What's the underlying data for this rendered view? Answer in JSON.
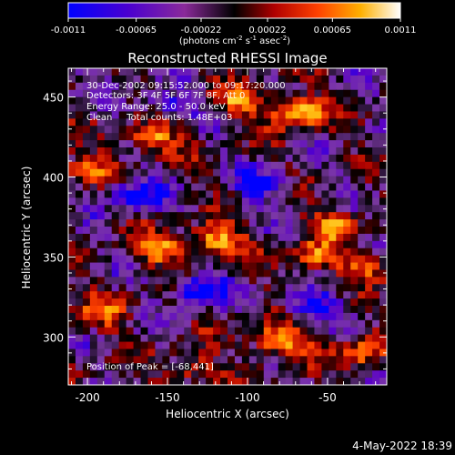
{
  "colorbar": {
    "tick_labels": [
      "-0.0011",
      "-0.00065",
      "-0.00022",
      "0.00022",
      "0.00065",
      "0.0011"
    ],
    "tick_values": [
      -0.0011,
      -0.00065,
      -0.00022,
      0.00022,
      0.00065,
      0.0011
    ],
    "range": [
      -0.0011,
      0.0011
    ],
    "units_label": "(photons cm",
    "units_parts": [
      "(photons cm",
      "-2",
      " s",
      "-1",
      " asec",
      "-2",
      ")"
    ]
  },
  "chart_data": {
    "type": "heatmap",
    "title": "Reconstructed RHESSI Image",
    "xlabel": "Heliocentric X (arcsec)",
    "ylabel": "Heliocentric Y (arcsec)",
    "xlim": [
      -212,
      -13
    ],
    "ylim": [
      270,
      468
    ],
    "x_ticks": [
      -200,
      -150,
      -100,
      -50
    ],
    "y_ticks": [
      300,
      350,
      400,
      450
    ],
    "x_tick_labels": [
      "-200",
      "-150",
      "-100",
      "-50"
    ],
    "y_tick_labels": [
      "300",
      "350",
      "400",
      "450"
    ],
    "colormap": [
      "#0000ff",
      "#5a00c8",
      "#7d3aa5",
      "#000000",
      "#aa0000",
      "#ff4400",
      "#ffaa00",
      "#ffff66",
      "#ffffff"
    ],
    "annotations": [
      "30-Dec-2002 09:15:52.000 to 09:17:20.000",
      "Detectors: 3F 4F 5F 6F 7F 8F, Att 0",
      "Energy Range: 25.0 - 50.0 keV",
      "Clean     Total counts: 1.48E+03",
      "Position of Peak = [-68,441]"
    ],
    "peak_position": [
      -68,
      441
    ],
    "bright_regions": [
      {
        "x": -68,
        "y": 441,
        "level": 1.0
      },
      {
        "x": -160,
        "y": 425,
        "level": 0.7
      },
      {
        "x": -105,
        "y": 448,
        "level": 0.6
      },
      {
        "x": -120,
        "y": 360,
        "level": 0.85
      },
      {
        "x": -155,
        "y": 355,
        "level": 0.7
      },
      {
        "x": -60,
        "y": 350,
        "level": 0.65
      },
      {
        "x": -45,
        "y": 370,
        "level": 0.6
      },
      {
        "x": -80,
        "y": 298,
        "level": 0.95
      },
      {
        "x": -190,
        "y": 315,
        "level": 0.55
      },
      {
        "x": -200,
        "y": 405,
        "level": 0.6
      },
      {
        "x": -25,
        "y": 345,
        "level": 0.5
      },
      {
        "x": -135,
        "y": 280,
        "level": 0.55
      },
      {
        "x": -30,
        "y": 290,
        "level": 0.65
      }
    ],
    "dim_regions": [
      {
        "x": -130,
        "y": 330,
        "level": -0.8
      },
      {
        "x": -170,
        "y": 390,
        "level": -0.7
      },
      {
        "x": -90,
        "y": 395,
        "level": -0.6
      },
      {
        "x": -60,
        "y": 320,
        "level": -0.7
      },
      {
        "x": -150,
        "y": 445,
        "level": -0.5
      }
    ]
  },
  "footer": {
    "date": "4-May-2022 18:39"
  }
}
